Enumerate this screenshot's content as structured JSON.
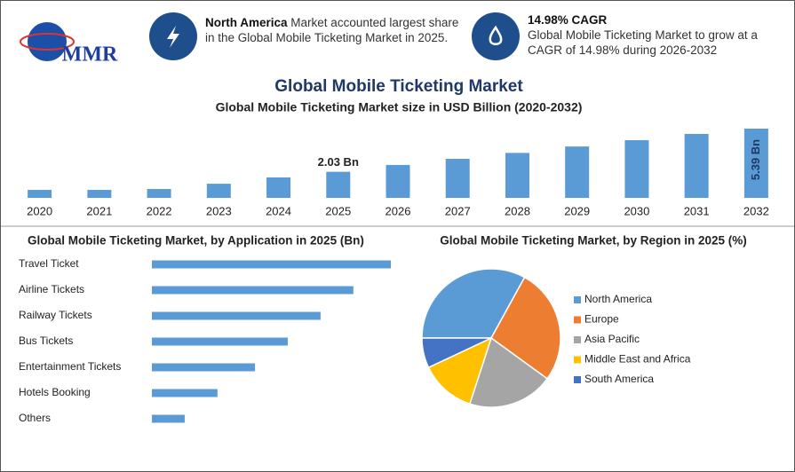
{
  "header": {
    "logo": "MMR",
    "info1": {
      "bold": "North America",
      "text": "Market accounted largest share in the Global Mobile Ticketing Market in 2025."
    },
    "info2": {
      "bold": "14.98% CAGR",
      "text": "Global Mobile Ticketing Market to grow at a CAGR of 14.98% during 2026-2032"
    },
    "title": "Global Mobile Ticketing Market"
  },
  "chart_data": [
    {
      "type": "bar",
      "title": "Global Mobile Ticketing Market size in USD Billion (2020-2032)",
      "categories": [
        "2020",
        "2021",
        "2022",
        "2023",
        "2024",
        "2025",
        "2026",
        "2027",
        "2028",
        "2029",
        "2030",
        "2031",
        "2032"
      ],
      "values": [
        0.62,
        0.62,
        0.69,
        1.1,
        1.59,
        2.03,
        2.56,
        3.04,
        3.5,
        4.0,
        4.49,
        4.98,
        5.39
      ],
      "value_labels": [
        null,
        null,
        null,
        null,
        null,
        "2.03 Bn",
        null,
        null,
        null,
        null,
        null,
        null,
        "5.39 Bn"
      ],
      "color": "#5b9bd5"
    },
    {
      "type": "hbar",
      "title": "Global Mobile Ticketing Market, by Application in 2025 (Bn)",
      "categories": [
        "Travel Ticket",
        "Airline Tickets",
        "Railway Tickets",
        "Bus Tickets",
        "Entertainment Tickets",
        "Hotels Booking",
        "Others"
      ],
      "values": [
        0.51,
        0.43,
        0.36,
        0.29,
        0.22,
        0.14,
        0.07
      ],
      "color": "#5b9bd5"
    },
    {
      "type": "pie",
      "title": "Global Mobile Ticketing Market, by Region in 2025 (%)",
      "categories": [
        "North America",
        "Europe",
        "Asia Pacific",
        "Middle East and Africa",
        "South America"
      ],
      "values": [
        33,
        27,
        20,
        13,
        7
      ],
      "colors": [
        "#5b9bd5",
        "#ed7d31",
        "#a5a5a5",
        "#ffc000",
        "#4472c4"
      ]
    }
  ]
}
